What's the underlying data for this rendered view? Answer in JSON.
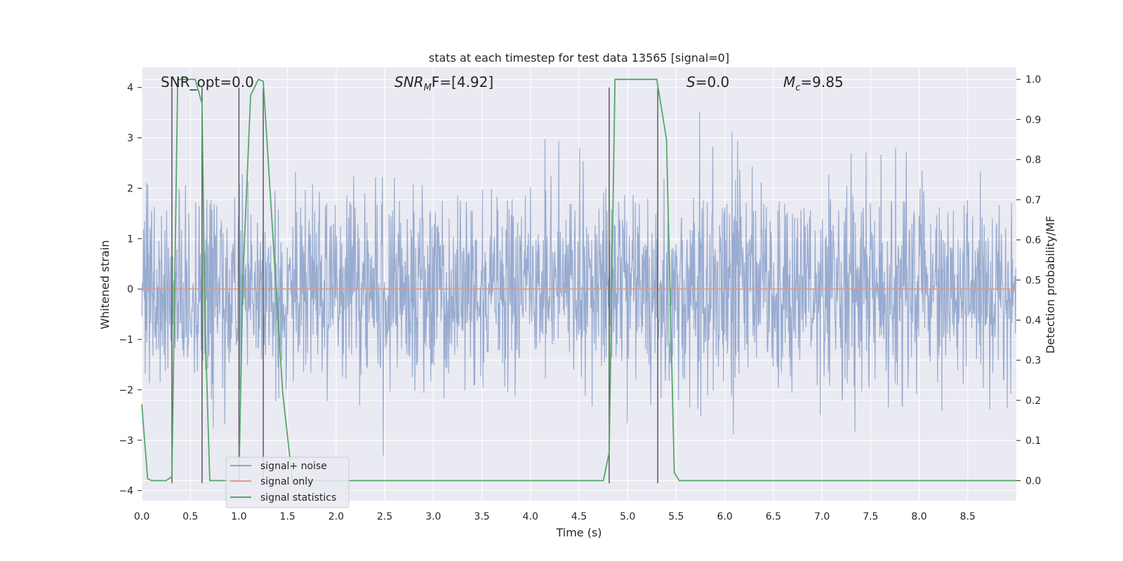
{
  "chart_data": {
    "type": "line",
    "title": "stats at each timestep for test data 13565 [signal=0]",
    "xlabel": "Time (s)",
    "ylabel": "Whitened strain",
    "ylabel_right": "Detection probability/MF",
    "xlim": [
      0.0,
      9.0
    ],
    "ylim": [
      -4.2,
      4.4
    ],
    "ylim_right": [
      -0.05,
      1.03
    ],
    "xticks": [
      0.0,
      0.5,
      1.0,
      1.5,
      2.0,
      2.5,
      3.0,
      3.5,
      4.0,
      4.5,
      5.0,
      5.5,
      6.0,
      6.5,
      7.0,
      7.5,
      8.0,
      8.5
    ],
    "xtick_labels": [
      "0.0",
      "0.5",
      "1.0",
      "1.5",
      "2.0",
      "2.5",
      "3.0",
      "3.5",
      "4.0",
      "4.5",
      "5.0",
      "5.5",
      "6.0",
      "6.5",
      "7.0",
      "7.5",
      "8.0",
      "8.5"
    ],
    "yticks": [
      -4,
      -3,
      -2,
      -1,
      0,
      1,
      2,
      3,
      4
    ],
    "ytick_labels": [
      "−4",
      "−3",
      "−2",
      "−1",
      "0",
      "1",
      "2",
      "3",
      "4"
    ],
    "yticks_right": [
      0.0,
      0.1,
      0.2,
      0.3,
      0.4,
      0.5,
      0.6,
      0.7,
      0.8,
      0.9,
      1.0
    ],
    "ytick_labels_right": [
      "0.0",
      "0.1",
      "0.2",
      "0.3",
      "0.4",
      "0.5",
      "0.6",
      "0.7",
      "0.8",
      "0.9",
      "1.0"
    ],
    "grid": true,
    "legend_position": "bottom-left",
    "annotations": [
      {
        "text": "SNR_opt=0.0"
      },
      {
        "text": "SNR",
        "sub": "M",
        "suffix": "F=[4.92]"
      },
      {
        "text": "S",
        "suffix": "=0.0"
      },
      {
        "text": "M",
        "sub": "c",
        "suffix": "=9.85"
      }
    ],
    "series": [
      {
        "name": "signal+ noise",
        "axis": "left",
        "color": "#8fa4cc",
        "noise": {
          "sample_rate_hz": 227,
          "typical_std": 1.0,
          "max_abs": 4.0
        }
      },
      {
        "name": "signal only",
        "axis": "left",
        "color": "#e49a7e",
        "x": [
          0.0,
          9.0
        ],
        "y": [
          0.0,
          0.0
        ]
      },
      {
        "name": "signal statistics",
        "axis": "right",
        "color": "#55a868",
        "x": [
          0.0,
          0.06,
          0.1,
          0.25,
          0.31,
          0.37,
          0.55,
          0.62,
          0.65,
          0.7,
          1.0,
          1.04,
          1.12,
          1.2,
          1.25,
          1.45,
          1.55,
          3.8,
          4.75,
          4.81,
          4.87,
          5.3,
          5.4,
          5.48,
          5.53,
          9.0
        ],
        "y": [
          0.19,
          0.005,
          0.0,
          0.0,
          0.01,
          1.0,
          1.0,
          0.94,
          0.4,
          0.0,
          0.0,
          0.5,
          0.96,
          1.0,
          0.995,
          0.22,
          0.0,
          0.0,
          0.0,
          0.07,
          1.0,
          1.0,
          0.85,
          0.02,
          0.0,
          0.0
        ]
      }
    ],
    "vertical_markers": {
      "color": "#595959",
      "x": [
        0.31,
        0.62,
        1.0,
        1.25,
        4.81,
        5.31
      ],
      "y_top": [
        4,
        4,
        4,
        4,
        4,
        4
      ],
      "y_bottom": [
        -3.85,
        -3.85,
        -3.85,
        -3.85,
        -3.85,
        -3.85
      ]
    }
  }
}
